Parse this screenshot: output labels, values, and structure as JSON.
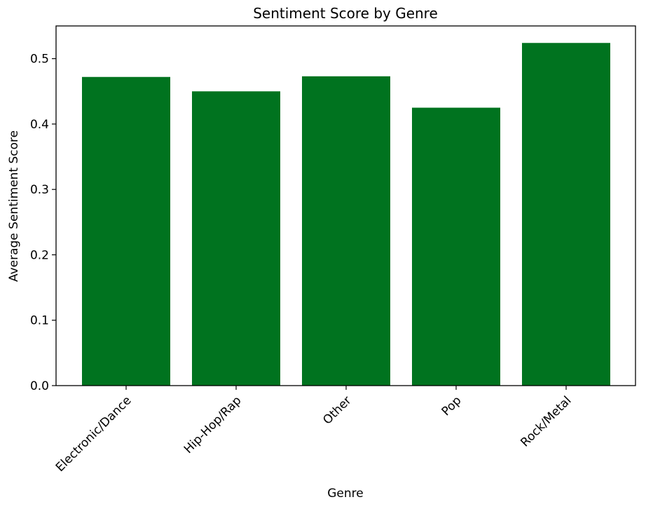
{
  "chart_data": {
    "type": "bar",
    "title": "Sentiment Score by Genre",
    "xlabel": "Genre",
    "ylabel": "Average Sentiment Score",
    "categories": [
      "Electronic/Dance",
      "Hip-Hop/Rap",
      "Other",
      "Pop",
      "Rock/Metal"
    ],
    "values": [
      0.472,
      0.45,
      0.473,
      0.425,
      0.524
    ],
    "ylim": [
      0,
      0.55
    ],
    "yticks": [
      "0.0",
      "0.1",
      "0.2",
      "0.3",
      "0.4",
      "0.5"
    ],
    "bar_color": "#00731f",
    "grid": false,
    "legend": "none"
  }
}
